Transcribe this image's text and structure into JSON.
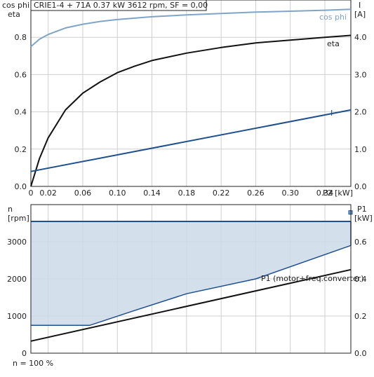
{
  "header": {
    "title": "CRIE1-4 + 71A   0.37 kW   3612 rpm, SF = 0,00"
  },
  "footer": {
    "note": "n = 100 %"
  },
  "colors": {
    "cos_phi": "#7fa4c8",
    "eta": "#111111",
    "current": "#1f4f8c",
    "envelope_fill": "#cbdbe8",
    "envelope_line": "#1f4f8c",
    "p1": "#111111",
    "grid": "#cfcfcf"
  },
  "chart_data": [
    {
      "type": "line",
      "left_axis_label_1": "cos phi",
      "left_axis_label_2": "eta",
      "right_axis_label": "I",
      "right_axis_unit": "[A]",
      "xlabel": "P2 [kW]",
      "xlim": [
        0,
        0.37
      ],
      "ylim": [
        0,
        1.0
      ],
      "y2lim": [
        0,
        5.0
      ],
      "x_ticks": [
        "0",
        "0.02",
        "0.06",
        "0.10",
        "0.14",
        "0.18",
        "0.22",
        "0.26",
        "0.30",
        "0.34"
      ],
      "x_tick_values": [
        0,
        0.02,
        0.06,
        0.1,
        0.14,
        0.18,
        0.22,
        0.26,
        0.3,
        0.34
      ],
      "y_ticks": [
        "0.0",
        "0.2",
        "0.4",
        "0.6",
        "0.8"
      ],
      "y_tick_values": [
        0,
        0.2,
        0.4,
        0.6,
        0.8
      ],
      "y2_ticks": [
        "0.0",
        "1.0",
        "2.0",
        "3.0",
        "4.0"
      ],
      "y2_tick_values": [
        0,
        1.0,
        2.0,
        3.0,
        4.0
      ],
      "grid": true,
      "series": [
        {
          "name": "cos phi",
          "axis": "left",
          "color_key": "cos_phi",
          "x": [
            0,
            0.01,
            0.02,
            0.04,
            0.06,
            0.08,
            0.1,
            0.14,
            0.18,
            0.22,
            0.26,
            0.3,
            0.34,
            0.37
          ],
          "y": [
            0.75,
            0.79,
            0.815,
            0.85,
            0.87,
            0.885,
            0.895,
            0.91,
            0.92,
            0.928,
            0.935,
            0.94,
            0.945,
            0.95
          ]
        },
        {
          "name": "eta",
          "axis": "left",
          "color_key": "eta",
          "x": [
            0,
            0.01,
            0.02,
            0.04,
            0.06,
            0.08,
            0.1,
            0.12,
            0.14,
            0.18,
            0.22,
            0.26,
            0.3,
            0.34,
            0.37
          ],
          "y": [
            0,
            0.15,
            0.26,
            0.41,
            0.5,
            0.56,
            0.61,
            0.645,
            0.675,
            0.715,
            0.745,
            0.77,
            0.785,
            0.8,
            0.81
          ]
        },
        {
          "name": "I",
          "axis": "right",
          "color_key": "current",
          "x": [
            0,
            0.37
          ],
          "y": [
            0.4,
            2.05
          ]
        }
      ]
    },
    {
      "type": "area",
      "left_axis_label": "n",
      "left_axis_unit": "[rpm]",
      "right_axis_label": "P1",
      "right_axis_unit": "[kW]",
      "xlim": [
        0,
        0.37
      ],
      "ylim": [
        0,
        4000
      ],
      "y2lim": [
        0,
        0.8
      ],
      "y_ticks": [
        "0",
        "1000",
        "2000",
        "3000"
      ],
      "y_tick_values": [
        0,
        1000,
        2000,
        3000
      ],
      "y2_ticks": [
        "0.0",
        "0.2",
        "0.4",
        "0.6"
      ],
      "y2_tick_values": [
        0,
        0.2,
        0.4,
        0.6
      ],
      "grid": true,
      "envelope": {
        "upper_x": [
          0,
          0.37
        ],
        "upper_y": [
          4000,
          4000
        ],
        "lower_x": [
          0,
          0.068,
          0.12,
          0.18,
          0.26,
          0.37
        ],
        "lower_y": [
          750,
          750,
          1150,
          1600,
          2000,
          2900
        ]
      },
      "series": [
        {
          "name": "P1 (motor+freq.converter)",
          "axis": "right",
          "color_key": "p1",
          "x": [
            0,
            0.37
          ],
          "y": [
            0.065,
            0.45
          ]
        }
      ],
      "marker": {
        "x": 0.37,
        "y": 3780
      }
    }
  ]
}
